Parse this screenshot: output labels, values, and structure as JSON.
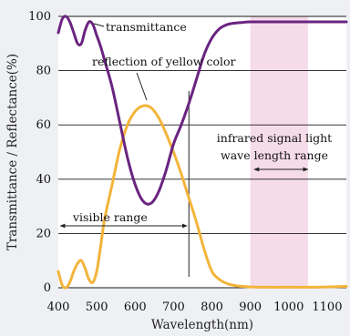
{
  "chart_data": {
    "type": "line",
    "xlabel": "Wavelength(nm)",
    "ylabel": "Transmittance / Reflectance(%)",
    "xlim": [
      400,
      1150
    ],
    "ylim": [
      0,
      100
    ],
    "x_ticks": [
      400,
      500,
      600,
      700,
      800,
      900,
      1000,
      1100
    ],
    "y_ticks": [
      0,
      20,
      40,
      60,
      80,
      100
    ],
    "grid": "horizontal",
    "highlight_band": {
      "x_range": [
        900,
        1050
      ],
      "color": "#f6dbe8"
    },
    "series": [
      {
        "name": "transmittance",
        "color": "#6a2480",
        "x": [
          400,
          410,
          420,
          430,
          440,
          450,
          460,
          470,
          480,
          490,
          500,
          510,
          520,
          540,
          560,
          580,
          600,
          620,
          640,
          660,
          680,
          700,
          720,
          740,
          760,
          780,
          800,
          820,
          840,
          860,
          880,
          900,
          950,
          1000,
          1050,
          1100,
          1150
        ],
        "y": [
          94,
          99,
          100,
          98,
          94,
          90,
          90,
          95,
          98,
          97,
          93,
          89,
          84,
          74,
          61,
          48,
          38,
          32,
          31,
          35,
          43,
          53,
          60,
          68,
          77,
          86,
          92,
          95.5,
          97,
          97.5,
          97.8,
          98,
          98,
          98,
          98,
          98,
          98
        ]
      },
      {
        "name": "reflection of yellow color",
        "color": "#f3b43a",
        "x": [
          400,
          410,
          420,
          430,
          440,
          450,
          460,
          470,
          480,
          490,
          500,
          510,
          520,
          540,
          560,
          580,
          600,
          620,
          640,
          660,
          680,
          700,
          720,
          740,
          760,
          780,
          800,
          820,
          840,
          860,
          880,
          900,
          950,
          1000,
          1050,
          1100,
          1150
        ],
        "y": [
          6,
          1,
          0,
          2,
          6,
          9,
          10,
          7,
          3,
          2,
          6,
          15,
          25,
          38,
          51,
          60,
          65,
          67,
          66.5,
          63,
          57,
          50,
          42,
          33,
          24,
          14,
          6,
          3,
          1.5,
          0.8,
          0.5,
          0.3,
          0.2,
          0.2,
          0.2,
          0.3,
          0.5
        ]
      }
    ],
    "annotations": {
      "transmittance": "transmittance",
      "reflection": "reflection of yellow color",
      "visible_range": "visible range",
      "visible_range_x": [
        400,
        740
      ],
      "infrared_line1": "infrared signal light",
      "infrared_line2": "wave length range",
      "infrared_arrow_x": [
        910,
        1050
      ],
      "visible_marker_x": 740
    }
  }
}
